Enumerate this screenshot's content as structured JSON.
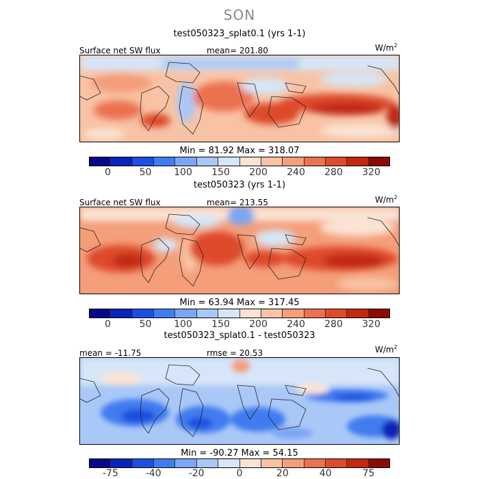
{
  "season": "SON",
  "colors": {
    "abs_scale": [
      "#08088c",
      "#0a24b8",
      "#1c4fe0",
      "#3f7cf0",
      "#7aa6f5",
      "#aac8f7",
      "#d6e6f8",
      "#fbe3d4",
      "#f8c3a4",
      "#f49e7a",
      "#ec7150",
      "#de4a2c",
      "#c02812",
      "#8c0a05"
    ],
    "diff_scale": [
      "#08088c",
      "#0a24b8",
      "#1c4fe0",
      "#3f7cf0",
      "#7aa6f5",
      "#aac8f7",
      "#d6e6f8",
      "#fbe3d4",
      "#f8c3a4",
      "#f49e7a",
      "#ec7150",
      "#de4a2c",
      "#c02812",
      "#8c0a05"
    ],
    "coastline": "#222222"
  },
  "panels": [
    {
      "title": "test050323_splat0.1 (yrs 1-1)",
      "variable": "Surface net SW flux",
      "stat_left": "",
      "stat_mid": "mean= 201.80",
      "units": "W/m",
      "units_sup": "2",
      "min_max": "Min =  81.92  Max = 318.07",
      "ticks": [
        "0",
        "50",
        "100",
        "150",
        "200",
        "240",
        "280",
        "320"
      ],
      "scale": "abs"
    },
    {
      "title": "test050323 (yrs 1-1)",
      "variable": "Surface net SW flux",
      "stat_left": "",
      "stat_mid": "mean= 213.55",
      "units": "W/m",
      "units_sup": "2",
      "min_max": "Min =  63.94  Max = 317.45",
      "ticks": [
        "0",
        "50",
        "100",
        "150",
        "200",
        "240",
        "280",
        "320"
      ],
      "scale": "abs"
    },
    {
      "title": "test050323_splat0.1 - test050323",
      "variable": "",
      "stat_left": "mean = -11.75",
      "stat_mid": "rmse =  20.53",
      "units": "W/m",
      "units_sup": "2",
      "min_max": "Min = -90.27  Max =  54.15",
      "ticks": [
        "-75",
        "-40",
        "-20",
        "0",
        "20",
        "40",
        "75"
      ],
      "scale": "diff"
    }
  ]
}
